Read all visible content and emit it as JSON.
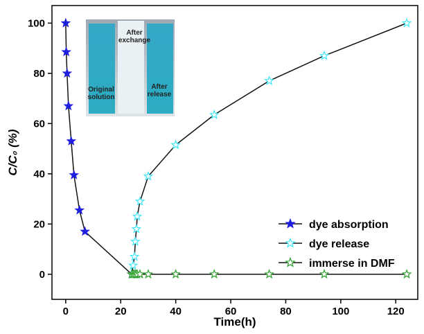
{
  "chart_data": {
    "type": "line",
    "x_label": "Time(h)",
    "y_label": "C/C₀ (%)",
    "xlim": [
      -5,
      128
    ],
    "ylim": [
      -10,
      107
    ],
    "xticks": [
      0,
      20,
      40,
      60,
      80,
      100,
      120
    ],
    "yticks": [
      0,
      20,
      40,
      60,
      80,
      100
    ],
    "legend": "lower right",
    "series": [
      {
        "name": "dye absorption",
        "color": "#1f1fe0",
        "filled": true,
        "x": [
          0,
          0.2,
          0.5,
          1,
          2,
          3,
          5,
          7,
          24
        ],
        "values": [
          100,
          88.5,
          80,
          67,
          53,
          39.5,
          25.5,
          17,
          0
        ]
      },
      {
        "name": "dye release",
        "color": "#40e6f5",
        "filled": false,
        "x": [
          24,
          24.5,
          25,
          25.3,
          25.7,
          26,
          27,
          30,
          40,
          54,
          74,
          94,
          124
        ],
        "values": [
          0,
          3.5,
          7,
          13,
          18,
          23,
          29,
          39,
          51.5,
          63.5,
          77,
          87,
          100
        ]
      },
      {
        "name": "immerse in DMF",
        "color": "#2e9e2e",
        "filled": false,
        "x": [
          24,
          24.5,
          25,
          25.5,
          26,
          27,
          30,
          40,
          54,
          74,
          94,
          124
        ],
        "values": [
          0,
          0,
          0,
          0,
          0,
          0,
          0,
          0,
          0,
          0,
          0,
          0
        ]
      }
    ],
    "annotations": [
      "After exchange",
      "Original solution",
      "After release"
    ]
  }
}
